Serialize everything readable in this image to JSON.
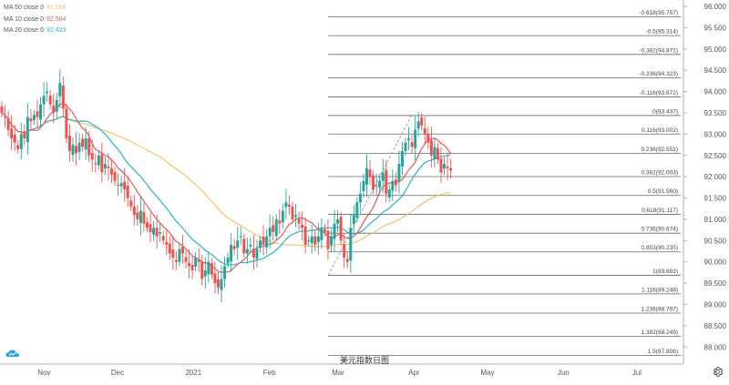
{
  "legend": [
    {
      "label": "MA 50 close 0",
      "value": "91.568",
      "color": "#f5c26b"
    },
    {
      "label": "MA 10 close 0",
      "value": "92.504",
      "color": "#e05a5a"
    },
    {
      "label": "MA 20 close 0",
      "value": "92.433",
      "color": "#2bb3c9"
    }
  ],
  "watermark": "美元指数日图",
  "colors": {
    "up": "#26a69a",
    "down": "#ef5350",
    "fib": "#666666",
    "trend": "#999999"
  },
  "icons": {
    "logo": "tradingview-cloud-logo",
    "settings": "gear-icon"
  },
  "chart_data": {
    "type": "candlestick",
    "title": "美元指数日图",
    "y_axis": {
      "min": 87.6,
      "max": 96.15,
      "position": "right",
      "ticks": [
        88.0,
        88.5,
        89.0,
        89.5,
        90.0,
        90.5,
        91.0,
        91.5,
        92.0,
        92.5,
        93.0,
        93.5,
        94.0,
        94.5,
        95.0,
        95.5,
        96.0
      ],
      "tick_labels": [
        "88.000",
        "88.500",
        "89.000",
        "89.500",
        "90.000",
        "90.500",
        "91.000",
        "91.500",
        "92.000",
        "92.500",
        "93.000",
        "93.500",
        "94.000",
        "94.500",
        "95.000",
        "95.500",
        "96.000"
      ]
    },
    "x_axis": {
      "labels": [
        {
          "label": "Nov",
          "date": "2020-11-01"
        },
        {
          "label": "Dec",
          "date": "2020-12-01"
        },
        {
          "label": "2021",
          "date": "2021-01-01"
        },
        {
          "label": "Feb",
          "date": "2021-02-01"
        },
        {
          "label": "Mar",
          "date": "2021-03-01"
        },
        {
          "label": "Apr",
          "date": "2021-04-01"
        },
        {
          "label": "May",
          "date": "2021-05-01"
        },
        {
          "label": "Jun",
          "date": "2021-06-01"
        },
        {
          "label": "Jul",
          "date": "2021-07-01"
        }
      ],
      "start_date": "2020-10-14",
      "end_date": "2021-07-20"
    },
    "candles_close": [
      93.5,
      93.4,
      93.1,
      92.9,
      92.8,
      92.65,
      93.0,
      92.9,
      93.4,
      93.3,
      93.45,
      93.4,
      93.7,
      93.9,
      94.0,
      93.7,
      93.5,
      93.8,
      94.2,
      93.6,
      92.9,
      92.6,
      92.75,
      92.55,
      92.8,
      92.7,
      92.9,
      92.5,
      92.4,
      92.3,
      92.5,
      92.1,
      92.3,
      92.2,
      92.05,
      91.9,
      91.8,
      91.85,
      91.7,
      91.5,
      91.3,
      91.1,
      91.0,
      91.2,
      90.9,
      90.8,
      90.7,
      90.8,
      90.6,
      90.7,
      90.5,
      90.4,
      90.2,
      90.1,
      90.0,
      90.3,
      90.2,
      90.0,
      89.9,
      89.8,
      90.1,
      90.0,
      89.6,
      89.8,
      90.0,
      89.7,
      89.5,
      89.4,
      89.6,
      89.9,
      90.1,
      90.4,
      90.3,
      90.5,
      90.6,
      90.2,
      90.3,
      90.4,
      90.1,
      90.3,
      90.5,
      90.4,
      90.6,
      90.8,
      90.7,
      91.0,
      90.9,
      91.2,
      91.4,
      91.3,
      91.0,
      91.1,
      90.9,
      90.8,
      90.4,
      90.5,
      90.6,
      90.4,
      90.6,
      90.8,
      90.7,
      90.3,
      90.6,
      90.9,
      91.0,
      90.5,
      90.1,
      90.0,
      90.8,
      91.1,
      91.4,
      91.6,
      91.9,
      92.2,
      92.0,
      91.7,
      91.8,
      91.9,
      92.1,
      91.6,
      91.7,
      91.9,
      91.8,
      92.3,
      92.6,
      92.8,
      92.9,
      92.7,
      93.1,
      93.3,
      93.2,
      93.0,
      92.8,
      92.5,
      92.7,
      92.4,
      92.1,
      92.3,
      92.2,
      92.15
    ],
    "ma_10_last": 92.504,
    "ma_20_last": 92.433,
    "ma_50_last": 91.568,
    "fib_levels": [
      {
        "label": "-0.618(95.757)",
        "price": 95.757
      },
      {
        "label": "-0.5(95.314)",
        "price": 95.314
      },
      {
        "label": "-0.382(94.871)",
        "price": 94.871
      },
      {
        "label": "-0.236(94.323)",
        "price": 94.323
      },
      {
        "label": "-0.116(93.872)",
        "price": 93.872
      },
      {
        "label": "0(93.437)",
        "price": 93.437
      },
      {
        "label": "0.116(93.002)",
        "price": 93.002
      },
      {
        "label": "0.236(92.551)",
        "price": 92.551
      },
      {
        "label": "0.382(92.003)",
        "price": 92.003
      },
      {
        "label": "0.5(91.560)",
        "price": 91.56
      },
      {
        "label": "0.618(91.117)",
        "price": 91.117
      },
      {
        "label": "0.736(90.674)",
        "price": 90.674
      },
      {
        "label": "0.853(90.235)",
        "price": 90.235
      },
      {
        "label": "1(89.683)",
        "price": 89.683
      },
      {
        "label": "1.116(89.248)",
        "price": 89.248
      },
      {
        "label": "1.236(88.797)",
        "price": 88.797
      },
      {
        "label": "1.382(88.249)",
        "price": 88.249
      },
      {
        "label": "1.5(87.806)",
        "price": 87.806
      }
    ],
    "fib_anchor": {
      "from_date": "2021-02-25",
      "from_price": 89.683,
      "to_date": "2021-03-31",
      "to_price": 93.437
    },
    "grid": false,
    "legend_position": "top-left"
  }
}
